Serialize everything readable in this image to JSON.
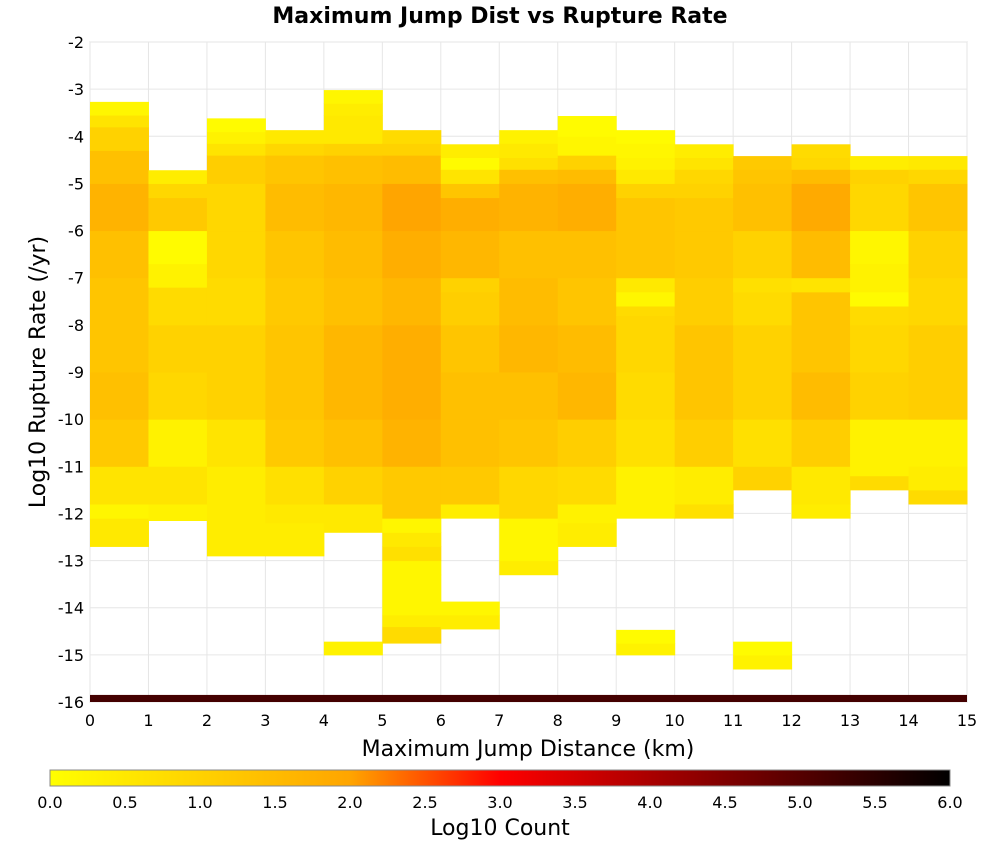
{
  "chart_data": {
    "type": "heatmap",
    "title": "Maximum Jump Dist vs Rupture Rate",
    "xlabel": "Maximum Jump Distance (km)",
    "ylabel": "Log10 Rupture Rate (/yr)",
    "colorbar_label": "Log10 Count",
    "xlim": [
      0,
      15
    ],
    "ylim": [
      -16,
      -2
    ],
    "xticks": [
      "0",
      "1",
      "2",
      "3",
      "4",
      "5",
      "6",
      "7",
      "8",
      "9",
      "10",
      "11",
      "12",
      "13",
      "14",
      "15"
    ],
    "yticks": [
      "-2",
      "-3",
      "-4",
      "-5",
      "-6",
      "-7",
      "-8",
      "-9",
      "-10",
      "-11",
      "-12",
      "-13",
      "-14",
      "-15",
      "-16"
    ],
    "colorbar_ticks": [
      "0.0",
      "0.5",
      "1.0",
      "1.5",
      "2.0",
      "2.5",
      "3.0",
      "3.5",
      "4.0",
      "4.5",
      "5.0",
      "5.5",
      "6.0"
    ],
    "colorbar_range": [
      0,
      6
    ],
    "colorscale": [
      "#ffff00",
      "#ffa500",
      "#ff0000",
      "#000000"
    ],
    "grid": true,
    "cell_height": 0.28,
    "columns": [
      {
        "x0": 0,
        "x1": 1,
        "segments": [
          [
            -12.7,
            0.5
          ],
          [
            -12.1,
            0.2
          ],
          [
            -11.8,
            0.6
          ],
          [
            -11.0,
            1.2
          ],
          [
            -10.0,
            1.4
          ],
          [
            -9.0,
            1.3
          ],
          [
            -8.0,
            1.3
          ],
          [
            -7.0,
            1.4
          ],
          [
            -6.0,
            1.7
          ],
          [
            -5.0,
            1.4
          ],
          [
            -4.3,
            1.0
          ],
          [
            -3.8,
            0.6
          ],
          [
            -3.55,
            0.2
          ]
        ]
      },
      {
        "x0": 1,
        "x1": 2,
        "segments": [
          [
            -12.15,
            0.3
          ],
          [
            -11.8,
            0.6
          ],
          [
            -11.0,
            0.3
          ],
          [
            -10.0,
            0.9
          ],
          [
            -9.0,
            1.0
          ],
          [
            -8.0,
            0.8
          ],
          [
            -7.2,
            0.3
          ],
          [
            -6.7,
            0.1
          ],
          [
            -6.0,
            1.2
          ],
          [
            -5.3,
            0.9
          ],
          [
            -5.0,
            0.4
          ]
        ]
      },
      {
        "x0": 2,
        "x1": 3,
        "segments": [
          [
            -12.9,
            0.4
          ],
          [
            -11.8,
            0.4
          ],
          [
            -11.0,
            0.6
          ],
          [
            -10.0,
            1.0
          ],
          [
            -9.0,
            1.0
          ],
          [
            -8.0,
            0.8
          ],
          [
            -7.0,
            0.9
          ],
          [
            -6.0,
            0.9
          ],
          [
            -5.0,
            1.1
          ],
          [
            -4.4,
            0.6
          ],
          [
            -4.15,
            0.3
          ],
          [
            -3.9,
            0.1
          ]
        ]
      },
      {
        "x0": 3,
        "x1": 4,
        "segments": [
          [
            -12.9,
            0.4
          ],
          [
            -12.2,
            0.5
          ],
          [
            -11.8,
            0.7
          ],
          [
            -11.0,
            1.2
          ],
          [
            -10.0,
            1.3
          ],
          [
            -9.0,
            1.3
          ],
          [
            -8.0,
            1.2
          ],
          [
            -7.0,
            1.3
          ],
          [
            -6.0,
            1.5
          ],
          [
            -5.0,
            1.3
          ],
          [
            -4.4,
            0.9
          ],
          [
            -4.15,
            0.5
          ]
        ]
      },
      {
        "x0": 4,
        "x1": 5,
        "segments": [
          [
            -15.0,
            0.3
          ],
          [
            -12.4,
            0.5
          ],
          [
            -11.8,
            1.0
          ],
          [
            -11.0,
            1.4
          ],
          [
            -10.0,
            1.6
          ],
          [
            -9.0,
            1.6
          ],
          [
            -8.0,
            1.4
          ],
          [
            -7.0,
            1.5
          ],
          [
            -6.0,
            1.6
          ],
          [
            -5.0,
            1.4
          ],
          [
            -4.4,
            1.0
          ],
          [
            -4.15,
            0.5
          ],
          [
            -3.55,
            0.4
          ],
          [
            -3.3,
            0.2
          ]
        ]
      },
      {
        "x0": 5,
        "x1": 6,
        "segments": [
          [
            -14.75,
            0.8
          ],
          [
            -14.4,
            0.4
          ],
          [
            -14.15,
            0.2
          ],
          [
            -13.3,
            0.2
          ],
          [
            -13.0,
            0.7
          ],
          [
            -12.7,
            0.5
          ],
          [
            -12.4,
            0.2
          ],
          [
            -12.1,
            1.2
          ],
          [
            -11.0,
            1.7
          ],
          [
            -10.0,
            1.8
          ],
          [
            -9.0,
            1.8
          ],
          [
            -8.0,
            1.6
          ],
          [
            -7.0,
            1.8
          ],
          [
            -6.0,
            2.0
          ],
          [
            -5.0,
            1.5
          ],
          [
            -4.4,
            1.0
          ],
          [
            -4.15,
            0.8
          ]
        ]
      },
      {
        "x0": 6,
        "x1": 7,
        "segments": [
          [
            -14.45,
            0.4
          ],
          [
            -14.15,
            0.2
          ],
          [
            -12.1,
            0.4
          ],
          [
            -11.8,
            1.2
          ],
          [
            -11.0,
            1.4
          ],
          [
            -10.0,
            1.4
          ],
          [
            -9.0,
            1.3
          ],
          [
            -8.0,
            1.1
          ],
          [
            -7.3,
            1.0
          ],
          [
            -7.0,
            1.6
          ],
          [
            -6.0,
            1.8
          ],
          [
            -5.3,
            1.3
          ],
          [
            -5.0,
            0.6
          ],
          [
            -4.7,
            0.1
          ],
          [
            -4.45,
            0.4
          ]
        ]
      },
      {
        "x0": 7,
        "x1": 8,
        "segments": [
          [
            -13.3,
            0.4
          ],
          [
            -13.0,
            0.2
          ],
          [
            -12.1,
            0.9
          ],
          [
            -11.0,
            1.3
          ],
          [
            -10.0,
            1.4
          ],
          [
            -9.0,
            1.6
          ],
          [
            -8.0,
            1.5
          ],
          [
            -7.0,
            1.4
          ],
          [
            -6.0,
            1.7
          ],
          [
            -5.0,
            1.4
          ],
          [
            -4.7,
            0.7
          ],
          [
            -4.45,
            0.5
          ],
          [
            -4.15,
            0.3
          ]
        ]
      },
      {
        "x0": 8,
        "x1": 9,
        "segments": [
          [
            -12.7,
            0.4
          ],
          [
            -12.2,
            0.3
          ],
          [
            -11.8,
            0.8
          ],
          [
            -11.0,
            1.1
          ],
          [
            -10.0,
            1.6
          ],
          [
            -9.0,
            1.5
          ],
          [
            -8.0,
            1.3
          ],
          [
            -7.0,
            1.4
          ],
          [
            -6.0,
            1.8
          ],
          [
            -5.0,
            1.5
          ],
          [
            -4.7,
            1.0
          ],
          [
            -4.4,
            0.2
          ],
          [
            -4.0,
            0.1
          ],
          [
            -3.85,
            0.1
          ]
        ]
      },
      {
        "x0": 9,
        "x1": 10,
        "segments": [
          [
            -15.0,
            0.3
          ],
          [
            -14.75,
            0.1
          ],
          [
            -12.1,
            0.3
          ],
          [
            -11.6,
            0.3
          ],
          [
            -11.0,
            0.7
          ],
          [
            -10.0,
            0.8
          ],
          [
            -9.0,
            0.9
          ],
          [
            -8.0,
            0.9
          ],
          [
            -7.8,
            0.8
          ],
          [
            -7.6,
            0.2
          ],
          [
            -7.3,
            0.5
          ],
          [
            -7.0,
            1.3
          ],
          [
            -6.0,
            1.3
          ],
          [
            -5.3,
            1.0
          ],
          [
            -5.0,
            0.5
          ],
          [
            -4.7,
            0.3
          ],
          [
            -4.45,
            0.2
          ],
          [
            -4.15,
            0.1
          ]
        ]
      },
      {
        "x0": 10,
        "x1": 11,
        "segments": [
          [
            -12.1,
            0.7
          ],
          [
            -11.8,
            0.4
          ],
          [
            -11.0,
            1.1
          ],
          [
            -10.0,
            1.3
          ],
          [
            -9.0,
            1.3
          ],
          [
            -8.0,
            1.1
          ],
          [
            -7.0,
            1.2
          ],
          [
            -6.0,
            1.2
          ],
          [
            -5.3,
            1.0
          ],
          [
            -5.0,
            0.9
          ],
          [
            -4.7,
            0.6
          ],
          [
            -4.45,
            0.4
          ]
        ]
      },
      {
        "x0": 11,
        "x1": 12,
        "segments": [
          [
            -15.3,
            0.3
          ],
          [
            -15.0,
            0.1
          ],
          [
            -11.5,
            1.0
          ],
          [
            -11.0,
            0.7
          ],
          [
            -10.0,
            1.0
          ],
          [
            -9.0,
            1.0
          ],
          [
            -8.0,
            0.8
          ],
          [
            -7.3,
            0.7
          ],
          [
            -7.0,
            1.0
          ],
          [
            -6.0,
            1.4
          ],
          [
            -5.0,
            1.3
          ],
          [
            -4.7,
            1.2
          ]
        ]
      },
      {
        "x0": 12,
        "x1": 13,
        "segments": [
          [
            -12.1,
            0.4
          ],
          [
            -11.8,
            0.5
          ],
          [
            -11.0,
            1.1
          ],
          [
            -10.0,
            1.5
          ],
          [
            -9.0,
            1.3
          ],
          [
            -8.0,
            1.3
          ],
          [
            -7.3,
            0.6
          ],
          [
            -7.0,
            1.5
          ],
          [
            -6.0,
            1.9
          ],
          [
            -5.0,
            1.5
          ],
          [
            -4.7,
            0.9
          ],
          [
            -4.45,
            0.8
          ]
        ]
      },
      {
        "x0": 13,
        "x1": 14,
        "segments": [
          [
            -11.5,
            0.8
          ],
          [
            -11.2,
            0.3
          ],
          [
            -11.0,
            0.3
          ],
          [
            -10.0,
            1.0
          ],
          [
            -9.0,
            0.9
          ],
          [
            -8.0,
            0.8
          ],
          [
            -7.6,
            0.1
          ],
          [
            -7.3,
            0.3
          ],
          [
            -6.7,
            0.2
          ],
          [
            -6.0,
            0.9
          ],
          [
            -5.0,
            1.0
          ],
          [
            -4.7,
            0.4
          ]
        ]
      },
      {
        "x0": 14,
        "x1": 15,
        "segments": [
          [
            -11.8,
            0.8
          ],
          [
            -11.5,
            0.4
          ],
          [
            -11.0,
            0.3
          ],
          [
            -10.0,
            1.1
          ],
          [
            -9.0,
            1.1
          ],
          [
            -8.0,
            0.9
          ],
          [
            -7.0,
            1.0
          ],
          [
            -6.0,
            1.3
          ],
          [
            -5.0,
            0.9
          ],
          [
            -4.7,
            0.5
          ]
        ]
      }
    ],
    "bottom_band": {
      "y0": -16,
      "y1": -15.85,
      "value": 5.2
    }
  }
}
